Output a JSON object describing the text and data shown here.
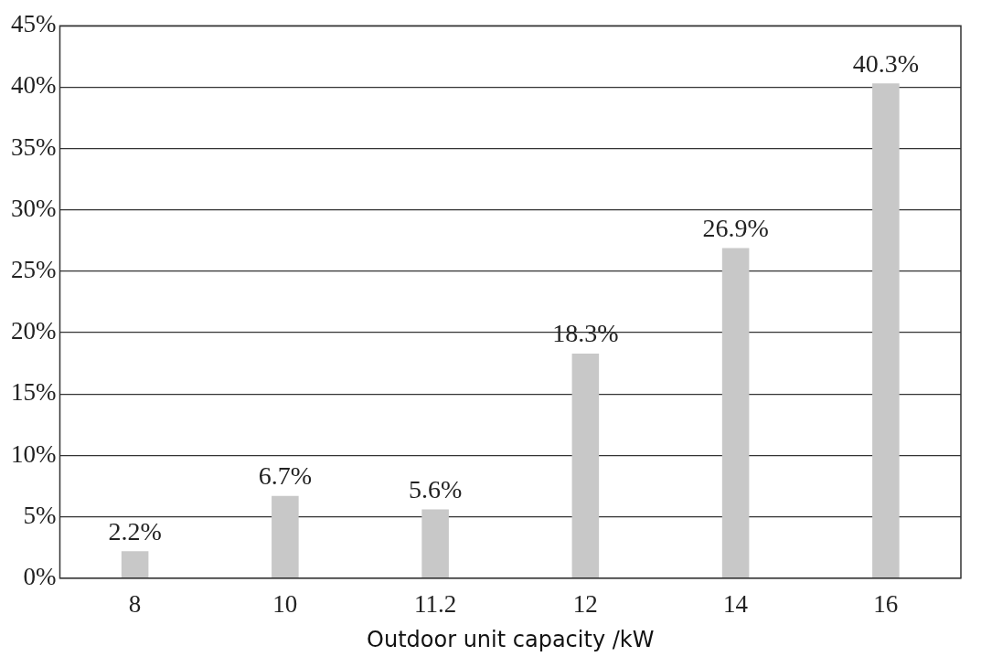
{
  "chart_data": {
    "type": "bar",
    "xlabel": "Outdoor unit capacity /kW",
    "categories": [
      "8",
      "10",
      "11.2",
      "12",
      "14",
      "16"
    ],
    "values": [
      2.2,
      6.7,
      5.6,
      18.3,
      26.9,
      40.3
    ],
    "value_labels": [
      "2.2%",
      "6.7%",
      "5.6%",
      "18.3%",
      "26.9%",
      "40.3%"
    ],
    "color": "#c8c8c8",
    "ylim": [
      0,
      45
    ],
    "yticks": [
      {
        "value": 0,
        "label": "0%"
      },
      {
        "value": 5,
        "label": "5%"
      },
      {
        "value": 10,
        "label": "10%"
      },
      {
        "value": 15,
        "label": "15%"
      },
      {
        "value": 20,
        "label": "20%"
      },
      {
        "value": 25,
        "label": "25%"
      },
      {
        "value": 30,
        "label": "30%"
      },
      {
        "value": 35,
        "label": "35%"
      },
      {
        "value": 40,
        "label": "40%"
      },
      {
        "value": 45,
        "label": "45%"
      }
    ],
    "grid": "y",
    "legend": false
  }
}
